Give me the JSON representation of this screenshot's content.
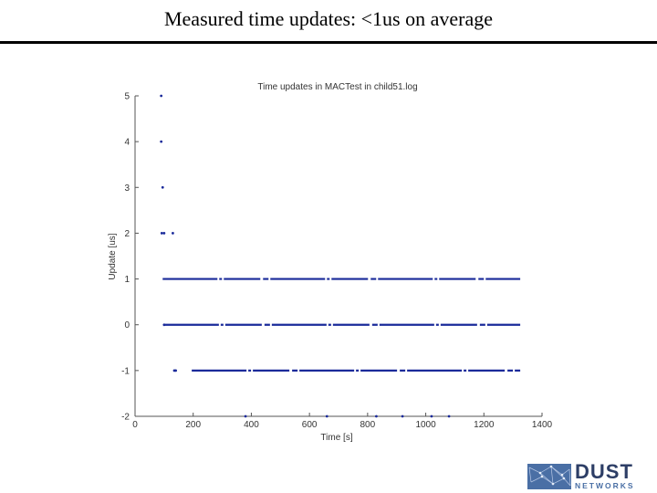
{
  "slide": {
    "title": "Measured time updates: <1us on average"
  },
  "chart_data": {
    "type": "scatter",
    "title": "Time updates in MACTest in child51.log",
    "xlabel": "Time [s]",
    "ylabel": "Update [us]",
    "xlim": [
      0,
      1400
    ],
    "ylim": [
      -2,
      5
    ],
    "xticks": [
      0,
      200,
      400,
      600,
      800,
      1000,
      1200,
      1400
    ],
    "yticks": [
      -2,
      -1,
      0,
      1,
      2,
      3,
      4,
      5
    ],
    "grid": false,
    "marker_color": "#1a2a9a",
    "series": [
      {
        "segments": [
          {
            "y": 1,
            "x_start": 95,
            "x_end": 1325
          },
          {
            "y": 0,
            "x_start": 100,
            "x_end": 1325
          },
          {
            "y": -1,
            "x_start": 195,
            "x_end": 1325
          }
        ],
        "points": [
          {
            "x": 90,
            "y": 5
          },
          {
            "x": 90,
            "y": 4
          },
          {
            "x": 95,
            "y": 3
          },
          {
            "x": 92,
            "y": 2
          },
          {
            "x": 100,
            "y": 2
          },
          {
            "x": 130,
            "y": 2
          },
          {
            "x": 100,
            "y": 0
          },
          {
            "x": 135,
            "y": -1
          },
          {
            "x": 140,
            "y": -1
          },
          {
            "x": 380,
            "y": -2
          },
          {
            "x": 660,
            "y": -2
          },
          {
            "x": 830,
            "y": -2
          },
          {
            "x": 920,
            "y": -2
          },
          {
            "x": 1020,
            "y": -2
          },
          {
            "x": 1080,
            "y": -2
          }
        ]
      }
    ]
  },
  "logo": {
    "name": "DUST",
    "tagline": "NETWORKS"
  }
}
